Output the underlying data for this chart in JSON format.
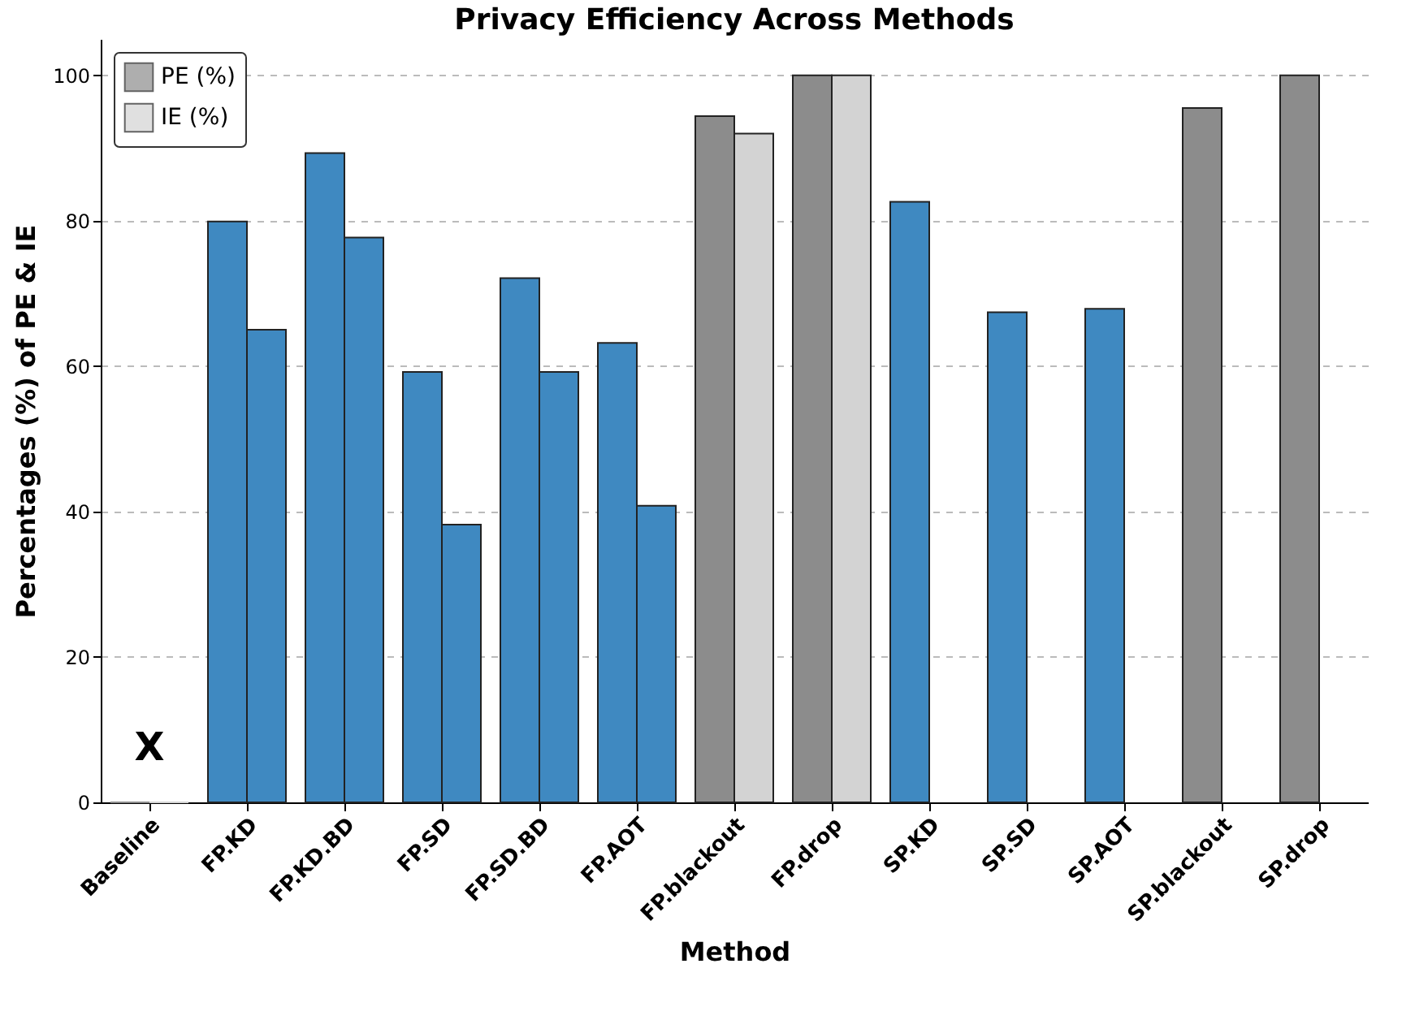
{
  "chart_data": {
    "type": "bar",
    "title": "Privacy Efficiency Across Methods",
    "xlabel": "Method",
    "ylabel": "Percentages (%) of PE & IE",
    "categories": [
      "Baseline",
      "FP.KD",
      "FP.KD.BD",
      "FP.SD",
      "FP.SD.BD",
      "FP.AOT",
      "FP.blackout",
      "FP.drop",
      "SP.KD",
      "SP.SD",
      "SP.AOT",
      "SP.blackout",
      "SP.drop"
    ],
    "series": [
      {
        "name": "PE (%)",
        "color": "#8c8c8c",
        "values": [
          0,
          79.9,
          89.3,
          59.2,
          72.1,
          63.2,
          94.4,
          100,
          82.6,
          67.4,
          67.9,
          95.5,
          100
        ],
        "colors": [
          "#8c8c8c",
          "#3f89c1",
          "#3f89c1",
          "#3f89c1",
          "#3f89c1",
          "#3f89c1",
          "#8c8c8c",
          "#8c8c8c",
          "#3f89c1",
          "#3f89c1",
          "#3f89c1",
          "#8c8c8c",
          "#8c8c8c"
        ]
      },
      {
        "name": "IE (%)",
        "color": "#d3d3d3",
        "values": [
          0,
          65.0,
          77.7,
          38.2,
          59.2,
          40.8,
          92.0,
          100,
          null,
          null,
          null,
          null,
          null
        ],
        "colors": [
          "#d3d3d3",
          "#3f89c1",
          "#3f89c1",
          "#3f89c1",
          "#3f89c1",
          "#3f89c1",
          "#d3d3d3",
          "#d3d3d3",
          null,
          null,
          null,
          null,
          null
        ]
      }
    ],
    "annotations": [
      "X"
    ],
    "ylim": [
      0,
      105
    ],
    "yticks": [
      0,
      20,
      40,
      60,
      80,
      100
    ],
    "grid": "y",
    "legend": "top left"
  }
}
